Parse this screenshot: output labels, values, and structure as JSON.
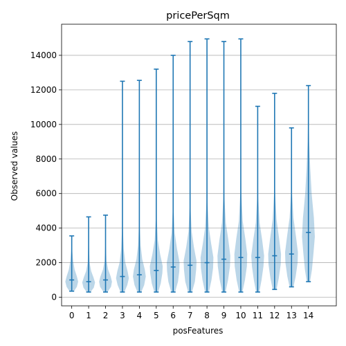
{
  "chart_data": {
    "type": "violin",
    "title": "pricePerSqm",
    "xlabel": "posFeatures",
    "ylabel": "Observed values",
    "categories": [
      "0",
      "1",
      "2",
      "3",
      "4",
      "5",
      "6",
      "7",
      "8",
      "9",
      "10",
      "11",
      "12",
      "13",
      "14"
    ],
    "ylim": [
      -500,
      15800
    ],
    "yticks": [
      0,
      2000,
      4000,
      6000,
      8000,
      10000,
      12000,
      14000
    ],
    "ytick_labels": [
      "0",
      "2000",
      "4000",
      "6000",
      "8000",
      "10000",
      "12000",
      "14000"
    ],
    "grid": "y",
    "color": "#1f77b4",
    "violins": [
      {
        "min": 350,
        "max": 3550,
        "median": 1000,
        "dens": [
          [
            350,
            0.35
          ],
          [
            600,
            0.8
          ],
          [
            900,
            1
          ],
          [
            1200,
            0.8
          ],
          [
            1600,
            0.45
          ],
          [
            2100,
            0.22
          ],
          [
            2700,
            0.08
          ],
          [
            3550,
            0.03
          ]
        ]
      },
      {
        "min": 300,
        "max": 4650,
        "median": 900,
        "dens": [
          [
            300,
            0.3
          ],
          [
            550,
            0.8
          ],
          [
            850,
            1
          ],
          [
            1150,
            0.75
          ],
          [
            1500,
            0.4
          ],
          [
            2000,
            0.15
          ],
          [
            3000,
            0.05
          ],
          [
            4650,
            0.02
          ]
        ]
      },
      {
        "min": 300,
        "max": 4750,
        "median": 1000,
        "dens": [
          [
            300,
            0.3
          ],
          [
            600,
            0.85
          ],
          [
            900,
            1
          ],
          [
            1200,
            0.8
          ],
          [
            1600,
            0.4
          ],
          [
            2100,
            0.15
          ],
          [
            3000,
            0.05
          ],
          [
            4750,
            0.02
          ]
        ]
      },
      {
        "min": 300,
        "max": 12500,
        "median": 1200,
        "dens": [
          [
            300,
            0.3
          ],
          [
            700,
            0.75
          ],
          [
            1100,
            1
          ],
          [
            1500,
            0.8
          ],
          [
            2000,
            0.45
          ],
          [
            2800,
            0.2
          ],
          [
            4000,
            0.06
          ],
          [
            7000,
            0.02
          ],
          [
            12500,
            0.01
          ]
        ]
      },
      {
        "min": 300,
        "max": 12550,
        "median": 1300,
        "dens": [
          [
            300,
            0.3
          ],
          [
            700,
            0.75
          ],
          [
            1200,
            1
          ],
          [
            1600,
            0.85
          ],
          [
            2200,
            0.45
          ],
          [
            3000,
            0.2
          ],
          [
            4200,
            0.06
          ],
          [
            7000,
            0.02
          ],
          [
            12550,
            0.01
          ]
        ]
      },
      {
        "min": 300,
        "max": 13200,
        "median": 1550,
        "dens": [
          [
            300,
            0.3
          ],
          [
            800,
            0.7
          ],
          [
            1400,
            0.95
          ],
          [
            1800,
            1
          ],
          [
            2500,
            0.6
          ],
          [
            3300,
            0.25
          ],
          [
            4500,
            0.08
          ],
          [
            7000,
            0.02
          ],
          [
            13200,
            0.01
          ]
        ]
      },
      {
        "min": 300,
        "max": 14000,
        "median": 1750,
        "dens": [
          [
            300,
            0.3
          ],
          [
            900,
            0.75
          ],
          [
            1500,
            0.95
          ],
          [
            2000,
            1
          ],
          [
            2800,
            0.6
          ],
          [
            3700,
            0.25
          ],
          [
            5000,
            0.07
          ],
          [
            8000,
            0.02
          ],
          [
            14000,
            0.01
          ]
        ]
      },
      {
        "min": 300,
        "max": 14800,
        "median": 1850,
        "dens": [
          [
            300,
            0.3
          ],
          [
            900,
            0.75
          ],
          [
            1600,
            0.95
          ],
          [
            2100,
            1
          ],
          [
            2900,
            0.6
          ],
          [
            3800,
            0.25
          ],
          [
            5200,
            0.07
          ],
          [
            8000,
            0.02
          ],
          [
            14800,
            0.01
          ]
        ]
      },
      {
        "min": 300,
        "max": 14950,
        "median": 2000,
        "dens": [
          [
            300,
            0.3
          ],
          [
            1000,
            0.7
          ],
          [
            1700,
            0.95
          ],
          [
            2300,
            1
          ],
          [
            3100,
            0.65
          ],
          [
            4000,
            0.3
          ],
          [
            5500,
            0.08
          ],
          [
            8500,
            0.02
          ],
          [
            14950,
            0.01
          ]
        ]
      },
      {
        "min": 300,
        "max": 14800,
        "median": 2200,
        "dens": [
          [
            300,
            0.25
          ],
          [
            1000,
            0.65
          ],
          [
            1800,
            0.95
          ],
          [
            2400,
            1
          ],
          [
            3300,
            0.7
          ],
          [
            4300,
            0.3
          ],
          [
            5800,
            0.08
          ],
          [
            9000,
            0.02
          ],
          [
            14800,
            0.01
          ]
        ]
      },
      {
        "min": 300,
        "max": 14950,
        "median": 2300,
        "dens": [
          [
            300,
            0.25
          ],
          [
            1000,
            0.65
          ],
          [
            1800,
            0.95
          ],
          [
            2500,
            1
          ],
          [
            3400,
            0.7
          ],
          [
            4400,
            0.3
          ],
          [
            6000,
            0.08
          ],
          [
            9000,
            0.02
          ],
          [
            14950,
            0.01
          ]
        ]
      },
      {
        "min": 300,
        "max": 11050,
        "median": 2300,
        "dens": [
          [
            300,
            0.25
          ],
          [
            1000,
            0.6
          ],
          [
            1800,
            0.9
          ],
          [
            2400,
            1
          ],
          [
            3300,
            0.7
          ],
          [
            4300,
            0.3
          ],
          [
            5800,
            0.08
          ],
          [
            8000,
            0.02
          ],
          [
            11050,
            0.01
          ]
        ]
      },
      {
        "min": 450,
        "max": 11800,
        "median": 2400,
        "dens": [
          [
            450,
            0.3
          ],
          [
            1100,
            0.65
          ],
          [
            1900,
            0.95
          ],
          [
            2500,
            1
          ],
          [
            3400,
            0.7
          ],
          [
            4500,
            0.3
          ],
          [
            6000,
            0.08
          ],
          [
            8500,
            0.02
          ],
          [
            11800,
            0.01
          ]
        ]
      },
      {
        "min": 600,
        "max": 9800,
        "median": 2500,
        "dens": [
          [
            600,
            0.3
          ],
          [
            1200,
            0.65
          ],
          [
            2000,
            0.95
          ],
          [
            2600,
            1
          ],
          [
            3500,
            0.7
          ],
          [
            4600,
            0.3
          ],
          [
            6000,
            0.08
          ],
          [
            8000,
            0.02
          ],
          [
            9800,
            0.01
          ]
        ]
      },
      {
        "min": 900,
        "max": 12250,
        "median": 3750,
        "dens": [
          [
            900,
            0.25
          ],
          [
            1600,
            0.55
          ],
          [
            2600,
            0.8
          ],
          [
            3500,
            1
          ],
          [
            4600,
            0.85
          ],
          [
            6000,
            0.5
          ],
          [
            7500,
            0.28
          ],
          [
            9000,
            0.12
          ],
          [
            10500,
            0.04
          ],
          [
            12250,
            0.02
          ]
        ]
      }
    ]
  }
}
